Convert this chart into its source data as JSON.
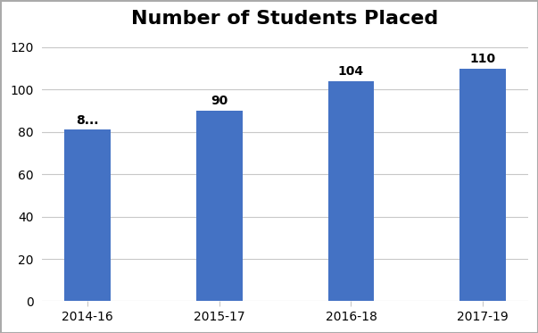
{
  "categories": [
    "2014-16",
    "2015-17",
    "2016-18",
    "2017-19"
  ],
  "values": [
    81,
    90,
    104,
    110
  ],
  "bar_labels": [
    "8...",
    "90",
    "104",
    "110"
  ],
  "bar_color": "#4472C4",
  "title": "Number of Students Placed",
  "title_fontsize": 16,
  "label_fontsize": 10,
  "tick_fontsize": 10,
  "ylim": [
    0,
    125
  ],
  "yticks": [
    0,
    20,
    40,
    60,
    80,
    100,
    120
  ],
  "background_color": "#ffffff",
  "grid_color": "#c8c8c8",
  "bar_width": 0.35,
  "border_color": "#aaaaaa"
}
